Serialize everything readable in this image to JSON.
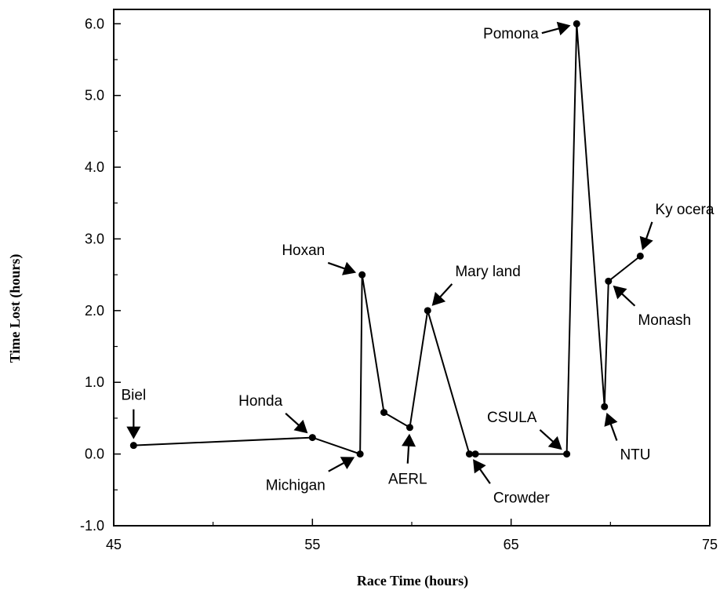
{
  "chart_data": {
    "type": "line",
    "title": "",
    "xlabel": "Race Time (hours)",
    "ylabel": "Time Lost (hours)",
    "xlim": [
      45,
      75
    ],
    "ylim": [
      -1.0,
      6.2
    ],
    "x_ticks": [
      "45",
      "55",
      "65",
      "75"
    ],
    "y_ticks": [
      "-1.0",
      "0.0",
      "1.0",
      "2.0",
      "3.0",
      "4.0",
      "5.0",
      "6.0"
    ],
    "grid": false,
    "legend": "none",
    "series": [
      {
        "x": [
          46.0,
          55.0,
          57.4,
          57.5,
          58.6,
          59.9,
          60.8,
          62.9,
          63.2,
          67.8,
          68.3,
          69.7,
          69.9,
          71.5
        ],
        "y": [
          0.12,
          0.23,
          0.0,
          2.5,
          0.58,
          0.37,
          2.0,
          0.0,
          0.0,
          0.0,
          6.0,
          0.66,
          2.41,
          2.76
        ]
      }
    ],
    "annotations": [
      {
        "label": "Biel",
        "x": 46.0,
        "y": 0.12,
        "text_pos": "top",
        "dx": 0,
        "dy": -58
      },
      {
        "label": "Honda",
        "x": 55.0,
        "y": 0.23,
        "text_pos": "top-left",
        "dx": -50,
        "dy": -45
      },
      {
        "label": "Michigan",
        "x": 57.4,
        "y": 0.0,
        "text_pos": "bottom-left",
        "dx": -95,
        "dy": 52
      },
      {
        "label": "Hoxan",
        "x": 57.5,
        "y": 2.5,
        "text_pos": "top-left",
        "dx": -100,
        "dy": -35
      },
      {
        "label": "AERL",
        "x": 59.9,
        "y": 0.37,
        "text_pos": "bottom",
        "dx": -5,
        "dy": 85
      },
      {
        "label": "Mary land",
        "x": 60.8,
        "y": 2.0,
        "text_pos": "top-right",
        "dx": 55,
        "dy": -60
      },
      {
        "label": "Crowder",
        "x": 62.9,
        "y": 0.0,
        "text_pos": "bottom-right",
        "dx": 40,
        "dy": 57
      },
      {
        "label": "CSULA",
        "x": 67.8,
        "y": 0.0,
        "text_pos": "top-left",
        "dx": -80,
        "dy": -72
      },
      {
        "label": "Pomona",
        "x": 68.3,
        "y": 6.0,
        "text_pos": "left",
        "dx": -105,
        "dy": 28
      },
      {
        "label": "NTU",
        "x": 69.7,
        "y": 0.66,
        "text_pos": "bottom-right",
        "dx": 40,
        "dy": 110
      },
      {
        "label": "Monash",
        "x": 69.9,
        "y": 2.41,
        "text_pos": "bottom-right",
        "dx": 75,
        "dy": 70
      },
      {
        "label": "Ky ocera",
        "x": 71.5,
        "y": 2.76,
        "text_pos": "top-right",
        "dx": 25,
        "dy": -72
      }
    ]
  }
}
